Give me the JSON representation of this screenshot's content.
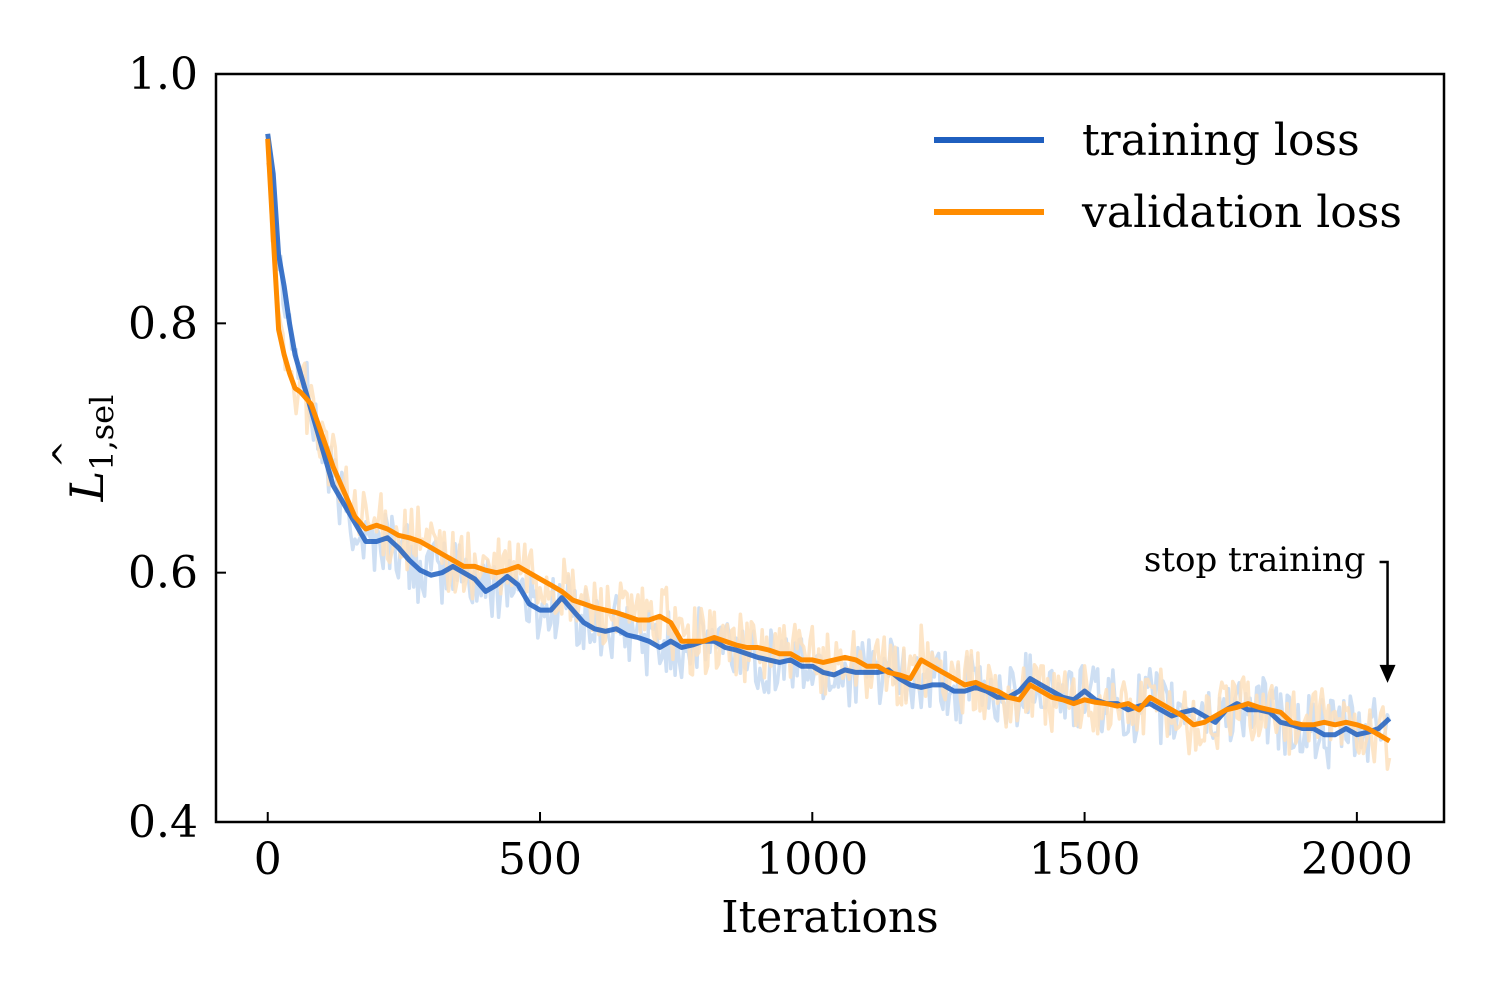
{
  "chart_data": {
    "type": "line",
    "title": "",
    "xlabel": "Iterations",
    "ylabel": {
      "symbol": "L",
      "hat": "^",
      "subscript": "1,sel"
    },
    "xlim": [
      -95,
      2160
    ],
    "ylim": [
      0.4,
      1.0
    ],
    "xticks": [
      0,
      500,
      1000,
      1500,
      2000
    ],
    "xtick_labels": [
      "0",
      "500",
      "1000",
      "1500",
      "2000"
    ],
    "yticks": [
      0.4,
      0.6,
      0.8,
      1.0
    ],
    "ytick_labels": [
      "0.4",
      "0.6",
      "0.8",
      "1.0"
    ],
    "grid": false,
    "legend_position": "top-right",
    "series": [
      {
        "name": "training loss",
        "color": "#1f5fbf",
        "raw_color": "#c6d9f1",
        "x": [
          0,
          10,
          20,
          30,
          40,
          50,
          60,
          70,
          80,
          100,
          120,
          140,
          160,
          180,
          200,
          220,
          240,
          260,
          280,
          300,
          320,
          340,
          360,
          380,
          400,
          420,
          440,
          460,
          480,
          500,
          520,
          540,
          560,
          580,
          600,
          620,
          640,
          660,
          680,
          700,
          720,
          740,
          760,
          780,
          800,
          820,
          840,
          860,
          880,
          900,
          920,
          940,
          960,
          980,
          1000,
          1020,
          1040,
          1060,
          1080,
          1100,
          1120,
          1140,
          1160,
          1180,
          1200,
          1220,
          1240,
          1260,
          1280,
          1300,
          1320,
          1340,
          1360,
          1380,
          1400,
          1420,
          1440,
          1460,
          1480,
          1500,
          1520,
          1540,
          1560,
          1580,
          1600,
          1620,
          1640,
          1660,
          1680,
          1700,
          1720,
          1740,
          1760,
          1780,
          1800,
          1820,
          1840,
          1860,
          1880,
          1900,
          1920,
          1940,
          1960,
          1980,
          2000,
          2020,
          2040,
          2060
        ],
        "values": [
          0.952,
          0.92,
          0.855,
          0.83,
          0.8,
          0.775,
          0.76,
          0.745,
          0.73,
          0.7,
          0.67,
          0.655,
          0.64,
          0.625,
          0.625,
          0.628,
          0.62,
          0.61,
          0.602,
          0.598,
          0.6,
          0.605,
          0.6,
          0.595,
          0.585,
          0.59,
          0.597,
          0.59,
          0.575,
          0.57,
          0.57,
          0.58,
          0.57,
          0.56,
          0.555,
          0.553,
          0.555,
          0.55,
          0.548,
          0.545,
          0.54,
          0.545,
          0.54,
          0.542,
          0.545,
          0.545,
          0.54,
          0.538,
          0.535,
          0.532,
          0.53,
          0.528,
          0.53,
          0.525,
          0.525,
          0.52,
          0.518,
          0.522,
          0.52,
          0.52,
          0.52,
          0.522,
          0.515,
          0.51,
          0.508,
          0.51,
          0.51,
          0.505,
          0.505,
          0.508,
          0.505,
          0.5,
          0.5,
          0.505,
          0.515,
          0.51,
          0.505,
          0.5,
          0.498,
          0.505,
          0.498,
          0.495,
          0.495,
          0.49,
          0.493,
          0.495,
          0.49,
          0.485,
          0.488,
          0.49,
          0.485,
          0.48,
          0.49,
          0.495,
          0.49,
          0.49,
          0.488,
          0.48,
          0.478,
          0.475,
          0.475,
          0.47,
          0.47,
          0.475,
          0.47,
          0.472,
          0.475,
          0.483
        ]
      },
      {
        "name": "validation loss",
        "color": "#ff8c00",
        "raw_color": "#fde0bd",
        "x": [
          0,
          10,
          20,
          30,
          40,
          50,
          60,
          70,
          80,
          100,
          120,
          140,
          160,
          180,
          200,
          220,
          240,
          260,
          280,
          300,
          320,
          340,
          360,
          380,
          400,
          420,
          440,
          460,
          480,
          500,
          520,
          540,
          560,
          580,
          600,
          620,
          640,
          660,
          680,
          700,
          720,
          740,
          760,
          780,
          800,
          820,
          840,
          860,
          880,
          900,
          920,
          940,
          960,
          980,
          1000,
          1020,
          1040,
          1060,
          1080,
          1100,
          1120,
          1140,
          1160,
          1180,
          1200,
          1220,
          1240,
          1260,
          1280,
          1300,
          1320,
          1340,
          1360,
          1380,
          1400,
          1420,
          1440,
          1460,
          1480,
          1500,
          1520,
          1540,
          1560,
          1580,
          1600,
          1620,
          1640,
          1660,
          1680,
          1700,
          1720,
          1740,
          1760,
          1780,
          1800,
          1820,
          1840,
          1860,
          1880,
          1900,
          1920,
          1940,
          1960,
          1980,
          2000,
          2020,
          2040,
          2060
        ],
        "values": [
          0.948,
          0.87,
          0.795,
          0.775,
          0.76,
          0.748,
          0.745,
          0.74,
          0.735,
          0.71,
          0.685,
          0.665,
          0.645,
          0.635,
          0.638,
          0.635,
          0.63,
          0.628,
          0.625,
          0.62,
          0.615,
          0.61,
          0.605,
          0.605,
          0.602,
          0.6,
          0.602,
          0.605,
          0.6,
          0.595,
          0.59,
          0.585,
          0.578,
          0.575,
          0.572,
          0.57,
          0.568,
          0.565,
          0.562,
          0.562,
          0.565,
          0.56,
          0.545,
          0.545,
          0.545,
          0.548,
          0.545,
          0.542,
          0.54,
          0.54,
          0.538,
          0.535,
          0.535,
          0.53,
          0.53,
          0.528,
          0.53,
          0.532,
          0.53,
          0.525,
          0.525,
          0.52,
          0.518,
          0.515,
          0.53,
          0.525,
          0.52,
          0.515,
          0.51,
          0.512,
          0.508,
          0.505,
          0.5,
          0.498,
          0.51,
          0.505,
          0.5,
          0.498,
          0.495,
          0.498,
          0.496,
          0.495,
          0.493,
          0.495,
          0.49,
          0.5,
          0.495,
          0.49,
          0.485,
          0.478,
          0.48,
          0.485,
          0.49,
          0.492,
          0.495,
          0.492,
          0.49,
          0.488,
          0.48,
          0.478,
          0.478,
          0.48,
          0.478,
          0.48,
          0.478,
          0.475,
          0.47,
          0.465
        ]
      }
    ],
    "annotations": [
      {
        "text": "stop training",
        "x": 2060,
        "y": 0.51,
        "arrow": "down"
      }
    ]
  }
}
